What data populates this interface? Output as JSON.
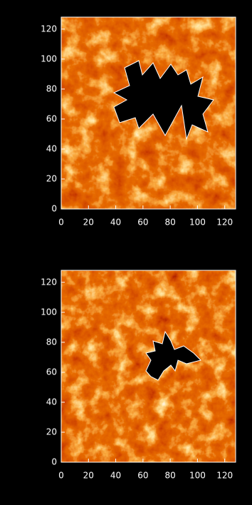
{
  "chart_data": [
    {
      "type": "image",
      "xlim": [
        0,
        128
      ],
      "ylim": [
        0,
        128
      ],
      "xticks": [
        0,
        20,
        40,
        60,
        80,
        100,
        120
      ],
      "yticks": [
        0,
        20,
        40,
        60,
        80,
        100,
        120
      ]
    },
    {
      "type": "image",
      "xlim": [
        0,
        128
      ],
      "ylim": [
        0,
        128
      ],
      "xticks": [
        0,
        20,
        40,
        60,
        80,
        100,
        120
      ],
      "yticks": [
        0,
        20,
        40,
        60,
        80,
        100,
        120
      ]
    }
  ]
}
